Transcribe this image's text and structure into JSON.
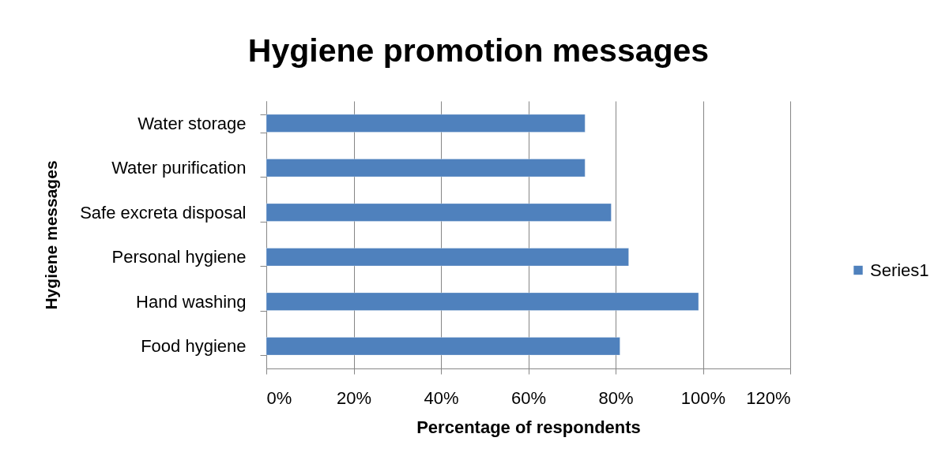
{
  "chart_data": {
    "type": "bar",
    "orientation": "horizontal",
    "title": "Hygiene promotion messages",
    "xlabel": "Percentage of respondents",
    "ylabel": "Hygiene messages",
    "categories": [
      "Water storage",
      "Water purification",
      "Safe excreta disposal",
      "Personal hygiene",
      "Hand washing",
      "Food hygiene"
    ],
    "series": [
      {
        "name": "Series1",
        "color": "#4f81bd",
        "values": [
          73,
          73,
          79,
          83,
          99,
          81
        ]
      }
    ],
    "xlim": [
      0,
      120
    ],
    "xticks": [
      {
        "value": 0,
        "label": "0%"
      },
      {
        "value": 20,
        "label": "20%"
      },
      {
        "value": 40,
        "label": "40%"
      },
      {
        "value": 60,
        "label": "60%"
      },
      {
        "value": 80,
        "label": "80%"
      },
      {
        "value": 100,
        "label": "100%"
      },
      {
        "value": 120,
        "label": "120%"
      }
    ],
    "grid": "x",
    "legend": "right"
  }
}
